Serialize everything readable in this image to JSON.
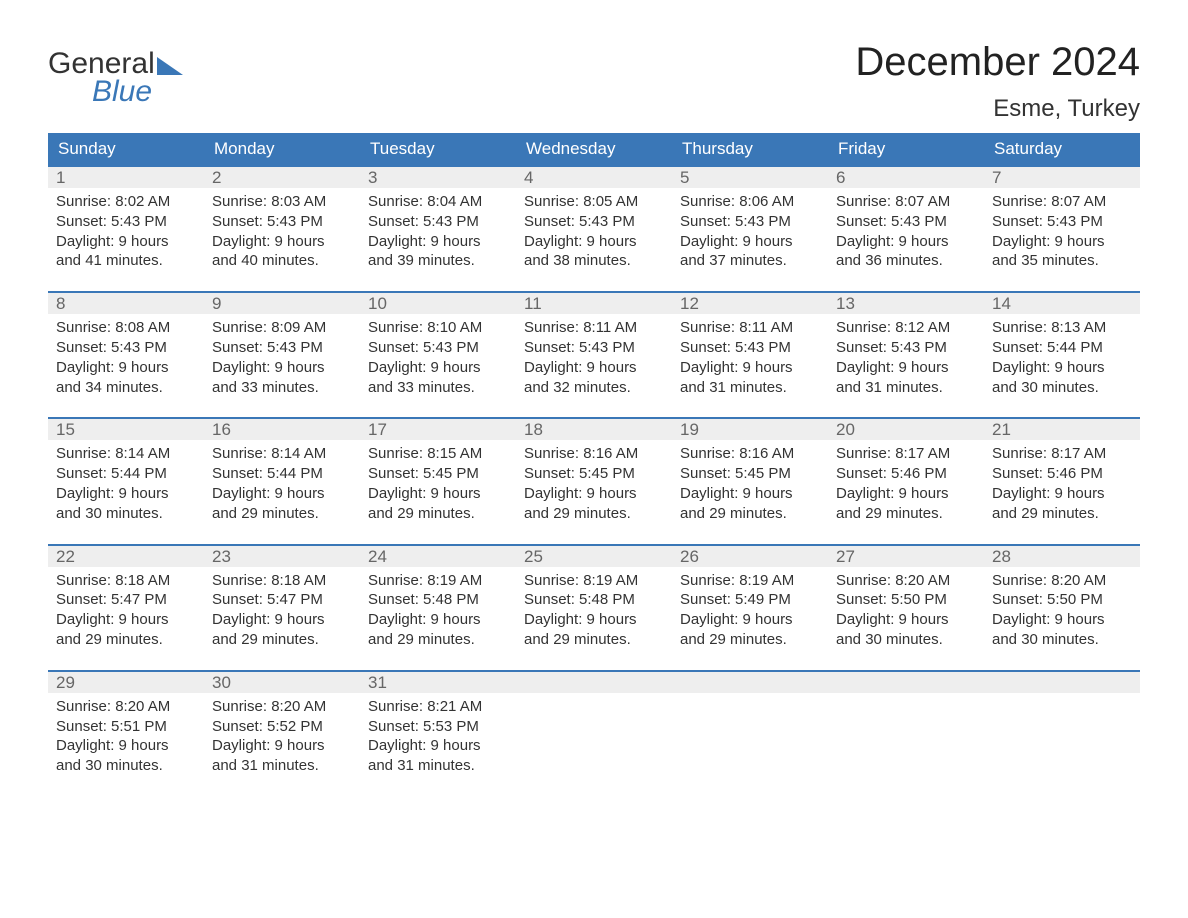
{
  "logo": {
    "line1": "General",
    "line2": "Blue"
  },
  "title": "December 2024",
  "location": "Esme, Turkey",
  "colors": {
    "accent": "#3a77b7",
    "band": "#eeeeee",
    "text": "#333333",
    "muted": "#666666",
    "background": "#ffffff"
  },
  "dow": [
    "Sunday",
    "Monday",
    "Tuesday",
    "Wednesday",
    "Thursday",
    "Friday",
    "Saturday"
  ],
  "weeks": [
    [
      {
        "n": "1",
        "sr": "Sunrise: 8:02 AM",
        "ss": "Sunset: 5:43 PM",
        "d1": "Daylight: 9 hours",
        "d2": "and 41 minutes."
      },
      {
        "n": "2",
        "sr": "Sunrise: 8:03 AM",
        "ss": "Sunset: 5:43 PM",
        "d1": "Daylight: 9 hours",
        "d2": "and 40 minutes."
      },
      {
        "n": "3",
        "sr": "Sunrise: 8:04 AM",
        "ss": "Sunset: 5:43 PM",
        "d1": "Daylight: 9 hours",
        "d2": "and 39 minutes."
      },
      {
        "n": "4",
        "sr": "Sunrise: 8:05 AM",
        "ss": "Sunset: 5:43 PM",
        "d1": "Daylight: 9 hours",
        "d2": "and 38 minutes."
      },
      {
        "n": "5",
        "sr": "Sunrise: 8:06 AM",
        "ss": "Sunset: 5:43 PM",
        "d1": "Daylight: 9 hours",
        "d2": "and 37 minutes."
      },
      {
        "n": "6",
        "sr": "Sunrise: 8:07 AM",
        "ss": "Sunset: 5:43 PM",
        "d1": "Daylight: 9 hours",
        "d2": "and 36 minutes."
      },
      {
        "n": "7",
        "sr": "Sunrise: 8:07 AM",
        "ss": "Sunset: 5:43 PM",
        "d1": "Daylight: 9 hours",
        "d2": "and 35 minutes."
      }
    ],
    [
      {
        "n": "8",
        "sr": "Sunrise: 8:08 AM",
        "ss": "Sunset: 5:43 PM",
        "d1": "Daylight: 9 hours",
        "d2": "and 34 minutes."
      },
      {
        "n": "9",
        "sr": "Sunrise: 8:09 AM",
        "ss": "Sunset: 5:43 PM",
        "d1": "Daylight: 9 hours",
        "d2": "and 33 minutes."
      },
      {
        "n": "10",
        "sr": "Sunrise: 8:10 AM",
        "ss": "Sunset: 5:43 PM",
        "d1": "Daylight: 9 hours",
        "d2": "and 33 minutes."
      },
      {
        "n": "11",
        "sr": "Sunrise: 8:11 AM",
        "ss": "Sunset: 5:43 PM",
        "d1": "Daylight: 9 hours",
        "d2": "and 32 minutes."
      },
      {
        "n": "12",
        "sr": "Sunrise: 8:11 AM",
        "ss": "Sunset: 5:43 PM",
        "d1": "Daylight: 9 hours",
        "d2": "and 31 minutes."
      },
      {
        "n": "13",
        "sr": "Sunrise: 8:12 AM",
        "ss": "Sunset: 5:43 PM",
        "d1": "Daylight: 9 hours",
        "d2": "and 31 minutes."
      },
      {
        "n": "14",
        "sr": "Sunrise: 8:13 AM",
        "ss": "Sunset: 5:44 PM",
        "d1": "Daylight: 9 hours",
        "d2": "and 30 minutes."
      }
    ],
    [
      {
        "n": "15",
        "sr": "Sunrise: 8:14 AM",
        "ss": "Sunset: 5:44 PM",
        "d1": "Daylight: 9 hours",
        "d2": "and 30 minutes."
      },
      {
        "n": "16",
        "sr": "Sunrise: 8:14 AM",
        "ss": "Sunset: 5:44 PM",
        "d1": "Daylight: 9 hours",
        "d2": "and 29 minutes."
      },
      {
        "n": "17",
        "sr": "Sunrise: 8:15 AM",
        "ss": "Sunset: 5:45 PM",
        "d1": "Daylight: 9 hours",
        "d2": "and 29 minutes."
      },
      {
        "n": "18",
        "sr": "Sunrise: 8:16 AM",
        "ss": "Sunset: 5:45 PM",
        "d1": "Daylight: 9 hours",
        "d2": "and 29 minutes."
      },
      {
        "n": "19",
        "sr": "Sunrise: 8:16 AM",
        "ss": "Sunset: 5:45 PM",
        "d1": "Daylight: 9 hours",
        "d2": "and 29 minutes."
      },
      {
        "n": "20",
        "sr": "Sunrise: 8:17 AM",
        "ss": "Sunset: 5:46 PM",
        "d1": "Daylight: 9 hours",
        "d2": "and 29 minutes."
      },
      {
        "n": "21",
        "sr": "Sunrise: 8:17 AM",
        "ss": "Sunset: 5:46 PM",
        "d1": "Daylight: 9 hours",
        "d2": "and 29 minutes."
      }
    ],
    [
      {
        "n": "22",
        "sr": "Sunrise: 8:18 AM",
        "ss": "Sunset: 5:47 PM",
        "d1": "Daylight: 9 hours",
        "d2": "and 29 minutes."
      },
      {
        "n": "23",
        "sr": "Sunrise: 8:18 AM",
        "ss": "Sunset: 5:47 PM",
        "d1": "Daylight: 9 hours",
        "d2": "and 29 minutes."
      },
      {
        "n": "24",
        "sr": "Sunrise: 8:19 AM",
        "ss": "Sunset: 5:48 PM",
        "d1": "Daylight: 9 hours",
        "d2": "and 29 minutes."
      },
      {
        "n": "25",
        "sr": "Sunrise: 8:19 AM",
        "ss": "Sunset: 5:48 PM",
        "d1": "Daylight: 9 hours",
        "d2": "and 29 minutes."
      },
      {
        "n": "26",
        "sr": "Sunrise: 8:19 AM",
        "ss": "Sunset: 5:49 PM",
        "d1": "Daylight: 9 hours",
        "d2": "and 29 minutes."
      },
      {
        "n": "27",
        "sr": "Sunrise: 8:20 AM",
        "ss": "Sunset: 5:50 PM",
        "d1": "Daylight: 9 hours",
        "d2": "and 30 minutes."
      },
      {
        "n": "28",
        "sr": "Sunrise: 8:20 AM",
        "ss": "Sunset: 5:50 PM",
        "d1": "Daylight: 9 hours",
        "d2": "and 30 minutes."
      }
    ],
    [
      {
        "n": "29",
        "sr": "Sunrise: 8:20 AM",
        "ss": "Sunset: 5:51 PM",
        "d1": "Daylight: 9 hours",
        "d2": "and 30 minutes."
      },
      {
        "n": "30",
        "sr": "Sunrise: 8:20 AM",
        "ss": "Sunset: 5:52 PM",
        "d1": "Daylight: 9 hours",
        "d2": "and 31 minutes."
      },
      {
        "n": "31",
        "sr": "Sunrise: 8:21 AM",
        "ss": "Sunset: 5:53 PM",
        "d1": "Daylight: 9 hours",
        "d2": "and 31 minutes."
      },
      {
        "empty": true
      },
      {
        "empty": true
      },
      {
        "empty": true
      },
      {
        "empty": true
      }
    ]
  ]
}
